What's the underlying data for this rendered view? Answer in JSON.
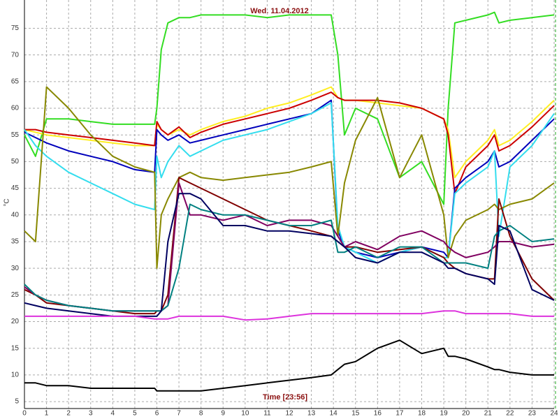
{
  "chart_data": {
    "type": "line",
    "title": "Wed. 11.04.2012",
    "x_label": "Time [23:56]",
    "y_label": "°C",
    "x": [
      0,
      0.5,
      1,
      2,
      3,
      4,
      5,
      5.9,
      6,
      6.2,
      6.5,
      7,
      7.5,
      8,
      9,
      10,
      11,
      12,
      13,
      13.9,
      14.2,
      14.5,
      15,
      16,
      17,
      18,
      19,
      19.2,
      19.5,
      20,
      21,
      21.3,
      21.5,
      22,
      23,
      24
    ],
    "xlim": [
      0,
      24
    ],
    "xticks": [
      0,
      1,
      2,
      3,
      4,
      5,
      6,
      7,
      8,
      9,
      10,
      11,
      12,
      13,
      14,
      15,
      16,
      17,
      18,
      19,
      20,
      21,
      22,
      23,
      24
    ],
    "ylim": [
      3.7,
      80.3
    ],
    "yticks": [
      5,
      10,
      15,
      20,
      25,
      30,
      35,
      40,
      45,
      50,
      55,
      60,
      65,
      70,
      75
    ],
    "grid": true,
    "series": [
      {
        "color": "#33dd22",
        "values": [
          55,
          51,
          58,
          58,
          57.5,
          57,
          57,
          57,
          60,
          71,
          76,
          77,
          77,
          77.5,
          77.5,
          77.5,
          77,
          77.5,
          77.5,
          77.5,
          70,
          55,
          60,
          58,
          47,
          50,
          42,
          60,
          76,
          76.5,
          77.5,
          78,
          76,
          76.5,
          77,
          77.5
        ]
      },
      {
        "color": "#ffee22",
        "values": [
          56,
          55.5,
          55,
          54.5,
          54,
          53.5,
          53,
          53,
          57,
          56,
          55,
          56,
          55,
          56,
          57.5,
          58.5,
          60,
          61,
          62.5,
          64,
          62,
          61.5,
          61.5,
          61,
          60.5,
          60,
          58,
          56,
          47,
          50,
          54,
          56,
          53,
          54,
          57.5,
          61.5
        ]
      },
      {
        "color": "#cc0000",
        "values": [
          56,
          56,
          55.5,
          55,
          54.5,
          54,
          53.5,
          53,
          57.5,
          56,
          55,
          56.5,
          54.5,
          55.5,
          57,
          58,
          59,
          60,
          61.5,
          63,
          62,
          61.5,
          61.5,
          61.5,
          61,
          60,
          58,
          55,
          44,
          49,
          53,
          55,
          52,
          53,
          56.5,
          60.5
        ]
      },
      {
        "color": "#0000bb",
        "values": [
          55.5,
          54.5,
          53.5,
          52,
          51,
          50,
          48.5,
          48,
          56,
          55,
          54,
          55,
          53.5,
          54,
          55,
          56,
          57,
          58,
          59,
          61.5,
          37,
          34,
          33,
          32,
          33,
          34,
          33,
          32,
          45,
          47,
          50,
          52,
          49,
          50,
          54,
          58
        ]
      },
      {
        "color": "#33ddee",
        "values": [
          56,
          53,
          51,
          48,
          46,
          44,
          42,
          41,
          51,
          47,
          50,
          53,
          51,
          52,
          54,
          55,
          56,
          57.5,
          59,
          61,
          38,
          34,
          33,
          31,
          33,
          34,
          32,
          32,
          44,
          46,
          49,
          52,
          36,
          49,
          53,
          59
        ]
      },
      {
        "color": "#888800",
        "values": [
          37,
          35,
          64,
          60,
          55,
          51,
          49,
          48,
          30,
          40,
          43,
          47,
          48,
          47,
          46.5,
          47,
          47.5,
          48,
          49,
          50,
          36,
          46,
          54,
          62,
          47,
          55,
          40,
          32,
          36,
          39,
          41,
          42,
          41,
          42,
          43,
          46
        ]
      },
      {
        "color": "#800000",
        "values": [
          26,
          25,
          23.5,
          23,
          22.5,
          22,
          21.5,
          21.5,
          22,
          22,
          25,
          47,
          46,
          45,
          43,
          41,
          39,
          38,
          37,
          36,
          35,
          34,
          34,
          33,
          33.5,
          34,
          32,
          31,
          30,
          29,
          28,
          28,
          43,
          36,
          28,
          24
        ]
      },
      {
        "color": "#800060",
        "values": [
          26.5,
          25,
          24,
          23,
          22.5,
          22,
          22,
          22,
          22,
          22,
          23,
          46,
          40,
          40,
          39,
          40,
          38,
          39,
          39,
          38,
          36,
          34,
          35,
          33.5,
          36,
          37,
          35,
          34,
          33,
          32,
          33,
          34,
          35,
          35,
          34,
          34.5
        ]
      },
      {
        "color": "#008080",
        "values": [
          27,
          25,
          24,
          23,
          22.5,
          22,
          22,
          22,
          22,
          22,
          23,
          30,
          42,
          41,
          40,
          40,
          39,
          38,
          38,
          39,
          33,
          33,
          34,
          32,
          34,
          34,
          31,
          31,
          31,
          31,
          30,
          36,
          37,
          38,
          35,
          35.5
        ]
      },
      {
        "color": "#000060",
        "values": [
          23.5,
          23,
          22.5,
          22,
          21.5,
          21,
          21,
          21,
          21,
          22,
          35,
          44,
          44,
          43,
          38,
          38,
          37,
          37,
          36.5,
          36,
          35,
          34,
          32,
          31,
          33,
          33,
          31,
          30,
          30,
          29,
          28,
          27,
          38,
          37,
          26,
          24
        ]
      },
      {
        "color": "#dd33dd",
        "values": [
          21,
          21,
          21,
          21,
          21,
          21,
          21,
          20.5,
          20.5,
          20.5,
          20.5,
          21,
          21,
          21,
          21,
          20.3,
          20.5,
          21,
          21.5,
          21.5,
          21.5,
          21.5,
          21.5,
          21.5,
          21.5,
          21.5,
          22,
          22,
          22,
          21.5,
          21.5,
          21.5,
          21.5,
          21.5,
          21,
          21
        ]
      },
      {
        "color": "#000000",
        "values": [
          8.5,
          8.5,
          8,
          8,
          7.5,
          7.5,
          7.5,
          7.5,
          7,
          7,
          7,
          7,
          7,
          7,
          7.5,
          8,
          8.5,
          9,
          9.5,
          10,
          11,
          12,
          12.5,
          15,
          16.5,
          14,
          15,
          13.5,
          13.5,
          13,
          11.5,
          11,
          11,
          10.5,
          10,
          10
        ]
      }
    ]
  }
}
